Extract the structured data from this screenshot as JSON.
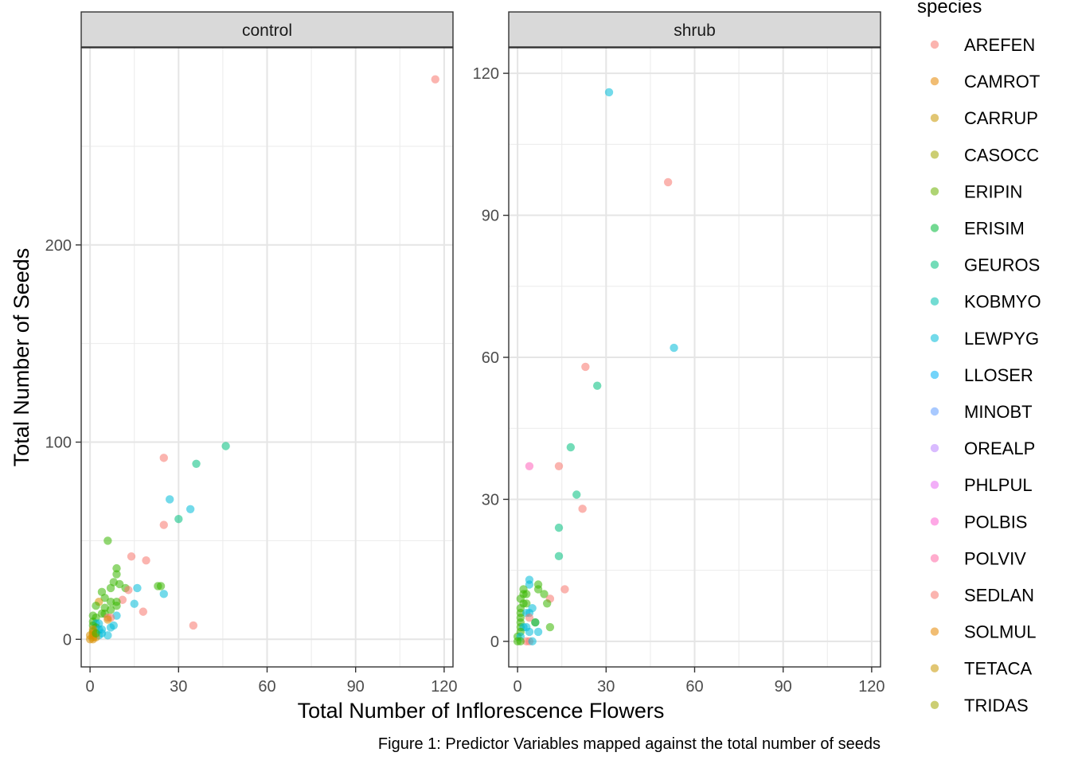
{
  "chart_data": {
    "type": "scatter",
    "facet_by": "treatment",
    "xlabel": "Total Number of Inflorescence Flowers",
    "ylabel": "Total Number of Seeds",
    "caption": "Figure 1: Predictor Variables mapped against the total number of seeds",
    "legend": {
      "title": "species",
      "position": "right",
      "entries": [
        {
          "name": "AREFEN",
          "color": "#F8766D"
        },
        {
          "name": "CAMROT",
          "color": "#E58700"
        },
        {
          "name": "CARRUP",
          "color": "#C99800"
        },
        {
          "name": "CASOCC",
          "color": "#A3A500"
        },
        {
          "name": "ERIPIN",
          "color": "#6BB100"
        },
        {
          "name": "ERISIM",
          "color": "#00BA38"
        },
        {
          "name": "GEUROS",
          "color": "#00BF7D"
        },
        {
          "name": "KOBMYO",
          "color": "#00C0AF"
        },
        {
          "name": "LEWPYG",
          "color": "#00BCD8"
        },
        {
          "name": "LLOSER",
          "color": "#00B0F6"
        },
        {
          "name": "MINOBT",
          "color": "#619CFF"
        },
        {
          "name": "OREALP",
          "color": "#B983FF"
        },
        {
          "name": "PHLPUL",
          "color": "#E76BF3"
        },
        {
          "name": "POLBIS",
          "color": "#FD61D1"
        },
        {
          "name": "POLVIV",
          "color": "#FF67A4"
        },
        {
          "name": "SEDLAN",
          "color": "#F8766D"
        },
        {
          "name": "SOLMUL",
          "color": "#E58700"
        },
        {
          "name": "TETACA",
          "color": "#C99800"
        },
        {
          "name": "TRIDAS",
          "color": "#A3A500"
        }
      ]
    },
    "point_colors": {
      "red": "#F8766D",
      "orange": "#D89000",
      "green": "#39B600",
      "teal": "#00BF7D",
      "cyan": "#00BCD8",
      "pink": "#FF62BC"
    },
    "panels": [
      {
        "strip": "control",
        "xlim": [
          -3,
          123
        ],
        "ylim": [
          -14,
          300
        ],
        "x_ticks": [
          0,
          30,
          60,
          90,
          120
        ],
        "y_ticks": [
          0,
          100,
          200
        ],
        "points": [
          {
            "x": 117,
            "y": 284,
            "c": "red"
          },
          {
            "x": 46,
            "y": 98,
            "c": "teal"
          },
          {
            "x": 25,
            "y": 92,
            "c": "red"
          },
          {
            "x": 36,
            "y": 89,
            "c": "teal"
          },
          {
            "x": 27,
            "y": 71,
            "c": "cyan"
          },
          {
            "x": 34,
            "y": 66,
            "c": "cyan"
          },
          {
            "x": 30,
            "y": 61,
            "c": "teal"
          },
          {
            "x": 25,
            "y": 58,
            "c": "red"
          },
          {
            "x": 6,
            "y": 50,
            "c": "green"
          },
          {
            "x": 14,
            "y": 42,
            "c": "red"
          },
          {
            "x": 19,
            "y": 40,
            "c": "red"
          },
          {
            "x": 9,
            "y": 36,
            "c": "green"
          },
          {
            "x": 9,
            "y": 33,
            "c": "green"
          },
          {
            "x": 8,
            "y": 29,
            "c": "green"
          },
          {
            "x": 10,
            "y": 28,
            "c": "green"
          },
          {
            "x": 12,
            "y": 26,
            "c": "green"
          },
          {
            "x": 13,
            "y": 25,
            "c": "red"
          },
          {
            "x": 16,
            "y": 26,
            "c": "cyan"
          },
          {
            "x": 23,
            "y": 27,
            "c": "green"
          },
          {
            "x": 24,
            "y": 27,
            "c": "green"
          },
          {
            "x": 25,
            "y": 23,
            "c": "cyan"
          },
          {
            "x": 7,
            "y": 26,
            "c": "green"
          },
          {
            "x": 4,
            "y": 24,
            "c": "green"
          },
          {
            "x": 5,
            "y": 21,
            "c": "green"
          },
          {
            "x": 11,
            "y": 20,
            "c": "red"
          },
          {
            "x": 3,
            "y": 19,
            "c": "orange"
          },
          {
            "x": 7,
            "y": 19,
            "c": "green"
          },
          {
            "x": 9,
            "y": 19,
            "c": "green"
          },
          {
            "x": 9,
            "y": 17,
            "c": "green"
          },
          {
            "x": 15,
            "y": 18,
            "c": "cyan"
          },
          {
            "x": 2,
            "y": 17,
            "c": "green"
          },
          {
            "x": 5,
            "y": 16,
            "c": "green"
          },
          {
            "x": 7,
            "y": 15,
            "c": "green"
          },
          {
            "x": 18,
            "y": 14,
            "c": "red"
          },
          {
            "x": 4,
            "y": 13,
            "c": "green"
          },
          {
            "x": 5,
            "y": 13,
            "c": "green"
          },
          {
            "x": 1,
            "y": 12,
            "c": "green"
          },
          {
            "x": 9,
            "y": 12,
            "c": "cyan"
          },
          {
            "x": 6,
            "y": 11,
            "c": "red"
          },
          {
            "x": 7,
            "y": 11,
            "c": "red"
          },
          {
            "x": 2,
            "y": 11,
            "c": "green"
          },
          {
            "x": 6,
            "y": 10,
            "c": "orange"
          },
          {
            "x": 1,
            "y": 9,
            "c": "green"
          },
          {
            "x": 2,
            "y": 8,
            "c": "cyan"
          },
          {
            "x": 3,
            "y": 8,
            "c": "cyan"
          },
          {
            "x": 8,
            "y": 7,
            "c": "cyan"
          },
          {
            "x": 7,
            "y": 6,
            "c": "cyan"
          },
          {
            "x": 35,
            "y": 7,
            "c": "red"
          },
          {
            "x": 1,
            "y": 7,
            "c": "green"
          },
          {
            "x": 2,
            "y": 6,
            "c": "green"
          },
          {
            "x": 3,
            "y": 5,
            "c": "cyan"
          },
          {
            "x": 4,
            "y": 5,
            "c": "cyan"
          },
          {
            "x": 1,
            "y": 4,
            "c": "green"
          },
          {
            "x": 4,
            "y": 3,
            "c": "cyan"
          },
          {
            "x": 3,
            "y": 2,
            "c": "cyan"
          },
          {
            "x": 6,
            "y": 2,
            "c": "cyan"
          },
          {
            "x": 1,
            "y": 5,
            "c": "orange"
          },
          {
            "x": 1,
            "y": 3,
            "c": "orange"
          },
          {
            "x": 1,
            "y": 2,
            "c": "orange"
          },
          {
            "x": 1,
            "y": 1,
            "c": "orange"
          },
          {
            "x": 1,
            "y": 0,
            "c": "orange"
          },
          {
            "x": 0,
            "y": 0,
            "c": "orange"
          },
          {
            "x": 2,
            "y": 1,
            "c": "orange"
          },
          {
            "x": 0,
            "y": 2,
            "c": "orange"
          },
          {
            "x": 2,
            "y": 3,
            "c": "green"
          }
        ]
      },
      {
        "strip": "shrub",
        "xlim": [
          -3,
          123
        ],
        "ylim": [
          -5.4,
          125.4
        ],
        "x_ticks": [
          0,
          30,
          60,
          90,
          120
        ],
        "y_ticks": [
          0,
          30,
          60,
          90,
          120
        ],
        "points": [
          {
            "x": 31,
            "y": 116,
            "c": "cyan"
          },
          {
            "x": 51,
            "y": 97,
            "c": "red"
          },
          {
            "x": 53,
            "y": 62,
            "c": "cyan"
          },
          {
            "x": 23,
            "y": 58,
            "c": "red"
          },
          {
            "x": 27,
            "y": 54,
            "c": "teal"
          },
          {
            "x": 18,
            "y": 41,
            "c": "teal"
          },
          {
            "x": 4,
            "y": 37,
            "c": "pink"
          },
          {
            "x": 14,
            "y": 37,
            "c": "red"
          },
          {
            "x": 20,
            "y": 31,
            "c": "teal"
          },
          {
            "x": 22,
            "y": 28,
            "c": "red"
          },
          {
            "x": 14,
            "y": 24,
            "c": "teal"
          },
          {
            "x": 14,
            "y": 18,
            "c": "teal"
          },
          {
            "x": 4,
            "y": 13,
            "c": "cyan"
          },
          {
            "x": 4,
            "y": 12,
            "c": "cyan"
          },
          {
            "x": 7,
            "y": 12,
            "c": "green"
          },
          {
            "x": 2,
            "y": 11,
            "c": "green"
          },
          {
            "x": 7,
            "y": 11,
            "c": "green"
          },
          {
            "x": 16,
            "y": 11,
            "c": "red"
          },
          {
            "x": 2,
            "y": 10,
            "c": "green"
          },
          {
            "x": 3,
            "y": 10,
            "c": "green"
          },
          {
            "x": 9,
            "y": 10,
            "c": "green"
          },
          {
            "x": 1,
            "y": 9,
            "c": "green"
          },
          {
            "x": 11,
            "y": 9,
            "c": "red"
          },
          {
            "x": 2,
            "y": 8,
            "c": "green"
          },
          {
            "x": 3,
            "y": 8,
            "c": "green"
          },
          {
            "x": 10,
            "y": 8,
            "c": "green"
          },
          {
            "x": 1,
            "y": 7,
            "c": "green"
          },
          {
            "x": 5,
            "y": 7,
            "c": "cyan"
          },
          {
            "x": 1,
            "y": 6,
            "c": "green"
          },
          {
            "x": 3,
            "y": 6,
            "c": "cyan"
          },
          {
            "x": 4,
            "y": 6,
            "c": "cyan"
          },
          {
            "x": 1,
            "y": 5,
            "c": "green"
          },
          {
            "x": 4,
            "y": 5,
            "c": "red"
          },
          {
            "x": 6,
            "y": 4,
            "c": "cyan"
          },
          {
            "x": 1,
            "y": 4,
            "c": "green"
          },
          {
            "x": 6,
            "y": 4,
            "c": "green"
          },
          {
            "x": 11,
            "y": 3,
            "c": "green"
          },
          {
            "x": 1,
            "y": 3,
            "c": "green"
          },
          {
            "x": 2,
            "y": 3,
            "c": "cyan"
          },
          {
            "x": 3,
            "y": 3,
            "c": "cyan"
          },
          {
            "x": 4,
            "y": 2,
            "c": "cyan"
          },
          {
            "x": 7,
            "y": 2,
            "c": "cyan"
          },
          {
            "x": 1,
            "y": 2,
            "c": "green"
          },
          {
            "x": 0,
            "y": 1,
            "c": "green"
          },
          {
            "x": 1,
            "y": 1,
            "c": "cyan"
          },
          {
            "x": 3,
            "y": 0,
            "c": "red"
          },
          {
            "x": 4,
            "y": 0,
            "c": "red"
          },
          {
            "x": 5,
            "y": 0,
            "c": "cyan"
          },
          {
            "x": 1,
            "y": 0,
            "c": "green"
          },
          {
            "x": 0,
            "y": 0,
            "c": "green"
          }
        ]
      }
    ]
  }
}
